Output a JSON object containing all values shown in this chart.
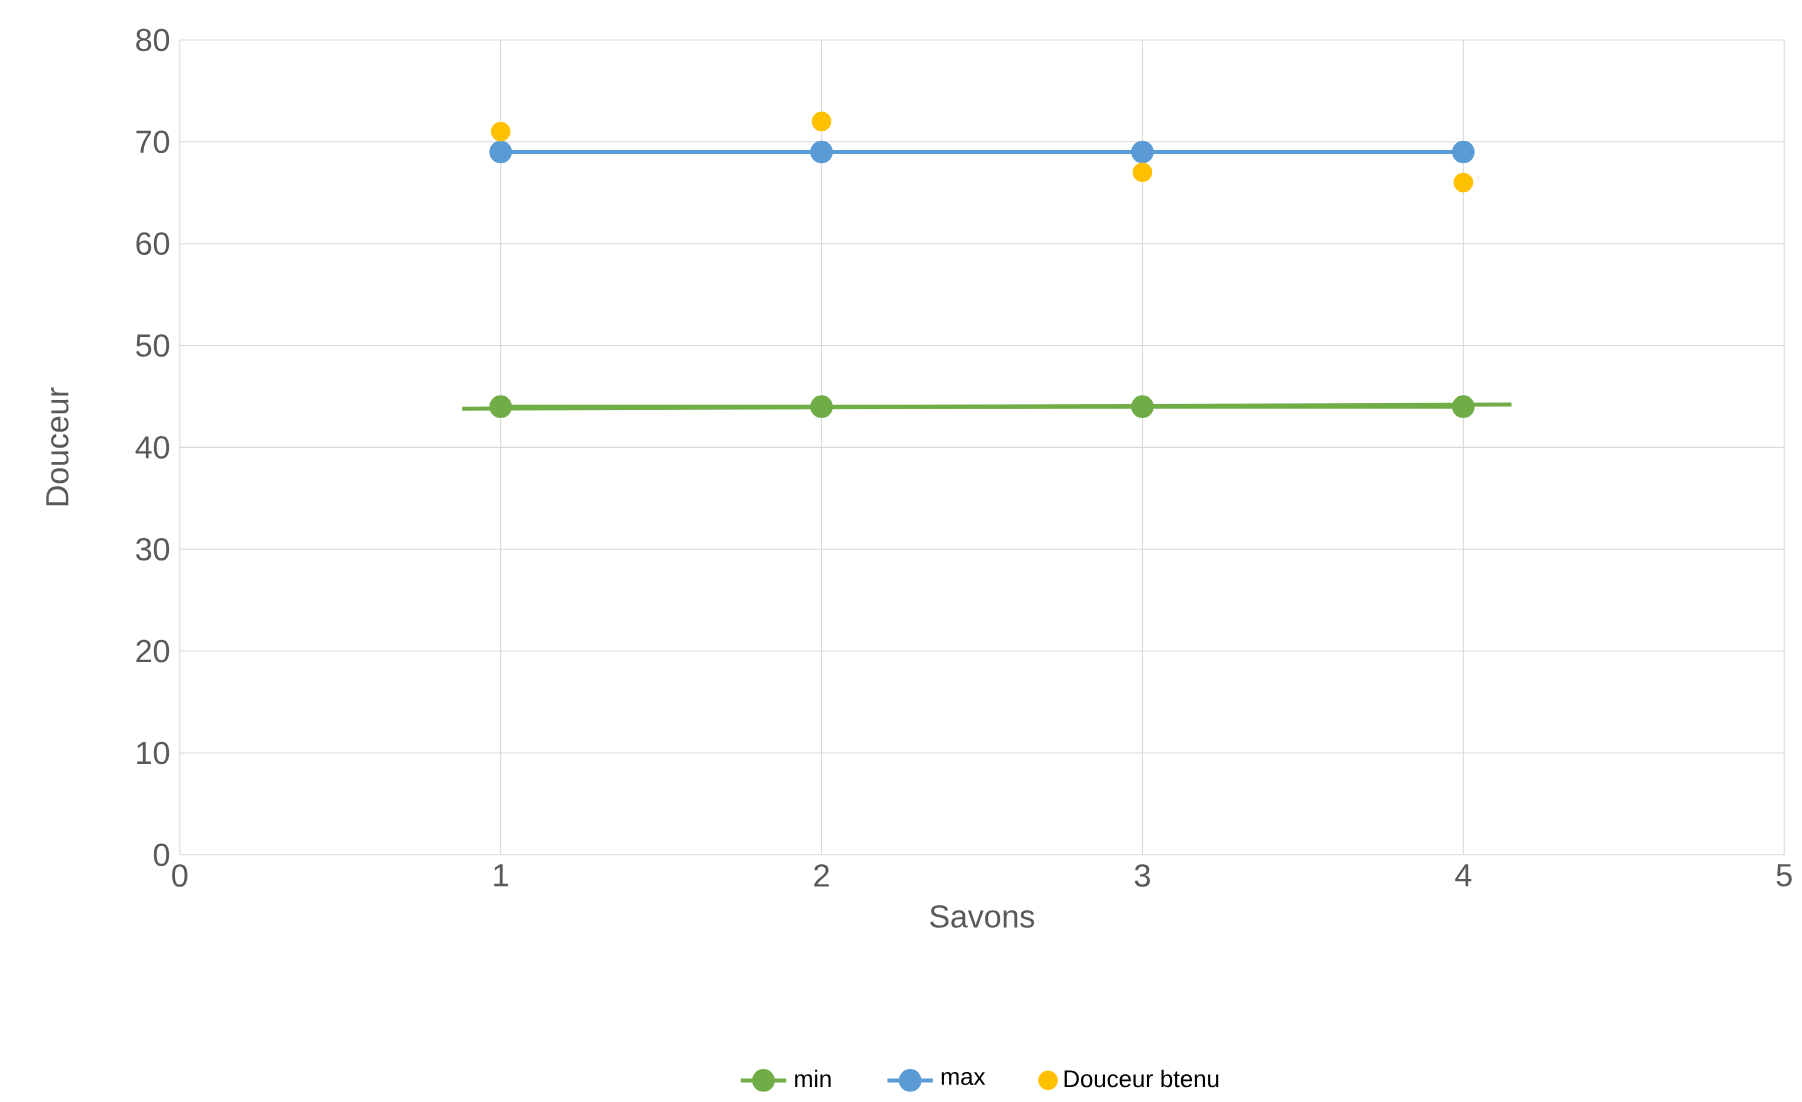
{
  "chart_data": {
    "type": "scatter",
    "xlabel": "Savons",
    "ylabel": "Douceur",
    "xlim": [
      0,
      5
    ],
    "ylim": [
      0,
      80
    ],
    "xticks": [
      0,
      1,
      2,
      3,
      4,
      5
    ],
    "yticks": [
      0,
      10,
      20,
      30,
      40,
      50,
      60,
      70,
      80
    ],
    "grid": true,
    "legend": "bottom",
    "x": [
      1,
      2,
      3,
      4
    ],
    "series": [
      {
        "name": "min",
        "type": "line",
        "color": "#70ad47",
        "marker": "circle",
        "values": [
          44,
          44,
          44,
          44
        ]
      },
      {
        "name": "max",
        "type": "line",
        "color": "#5b9bd5",
        "marker": "circle",
        "values": [
          69,
          69,
          69,
          69
        ]
      },
      {
        "name": "Douceur btenu",
        "color": "#ffc000",
        "marker": "circle",
        "values": [
          71,
          72,
          67,
          66
        ]
      },
      {
        "type": "line",
        "color": "#70ad47",
        "marker": "none",
        "x": [
          0.88,
          4.15
        ],
        "values": [
          43.8,
          44.2
        ]
      }
    ]
  }
}
